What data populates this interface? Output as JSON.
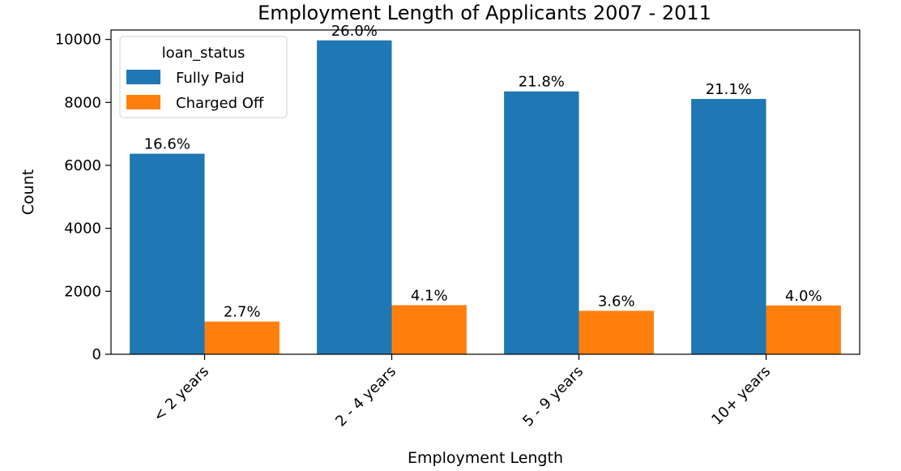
{
  "chart_data": {
    "type": "bar",
    "title": "Employment Length of Applicants 2007 - 2011",
    "xlabel": "Employment Length",
    "ylabel": "Count",
    "categories": [
      "< 2 years",
      "2 - 4 years",
      "5 - 9 years",
      "10+ years"
    ],
    "ylim": [
      0,
      10300
    ],
    "yticks": [
      0,
      2000,
      4000,
      6000,
      8000,
      10000
    ],
    "grid": false,
    "legend": {
      "title": "loan_status",
      "placement": "top-left"
    },
    "series": [
      {
        "name": "Fully Paid",
        "color": "#1f77b4",
        "values": [
          6370,
          9970,
          8350,
          8110
        ],
        "labels": [
          "16.6%",
          "26.0%",
          "21.8%",
          "21.1%"
        ]
      },
      {
        "name": "Charged Off",
        "color": "#ff7f0e",
        "values": [
          1040,
          1560,
          1380,
          1550
        ],
        "labels": [
          "2.7%",
          "4.1%",
          "3.6%",
          "4.0%"
        ]
      }
    ]
  }
}
